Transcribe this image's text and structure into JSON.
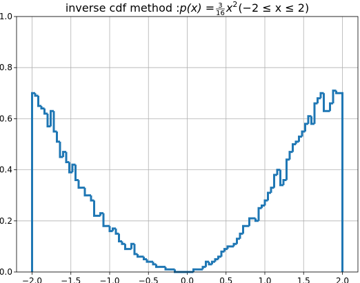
{
  "chart_data": {
    "type": "histogram",
    "title": {
      "text": "inverse cdf method : ",
      "lhs": "p(x) = ",
      "numerator": "3",
      "denominator": "16",
      "variable": "x",
      "exponent": "2",
      "condition": "(−2 ≤ x ≤ 2)"
    },
    "bins": [
      -2,
      -1.96,
      -1.92,
      -1.88,
      -1.84,
      -1.8,
      -1.76,
      -1.72,
      -1.68,
      -1.64,
      -1.6,
      -1.56,
      -1.52,
      -1.48,
      -1.44,
      -1.4,
      -1.36,
      -1.32,
      -1.28,
      -1.24,
      -1.2,
      -1.16,
      -1.12,
      -1.08,
      -1.04,
      -1,
      -0.96,
      -0.92,
      -0.88,
      -0.84,
      -0.8,
      -0.76,
      -0.72,
      -0.68,
      -0.64,
      -0.6,
      -0.56,
      -0.52,
      -0.48,
      -0.44,
      -0.4,
      -0.36,
      -0.32,
      -0.28,
      -0.24,
      -0.2,
      -0.16,
      -0.12,
      -0.08,
      -0.04,
      0,
      0.04,
      0.08,
      0.12,
      0.16,
      0.2,
      0.24,
      0.28,
      0.32,
      0.36,
      0.4,
      0.44,
      0.48,
      0.52,
      0.56,
      0.6,
      0.64,
      0.68,
      0.72,
      0.76,
      0.8,
      0.84,
      0.88,
      0.92,
      0.96,
      1,
      1.04,
      1.08,
      1.12,
      1.16,
      1.2,
      1.24,
      1.28,
      1.32,
      1.36,
      1.4,
      1.44,
      1.48,
      1.52,
      1.56,
      1.6,
      1.64,
      1.68,
      1.72,
      1.76,
      1.8,
      1.84,
      1.88,
      1.92,
      1.96,
      2
    ],
    "values": [
      0.7,
      0.69,
      0.65,
      0.64,
      0.62,
      0.57,
      0.63,
      0.55,
      0.51,
      0.45,
      0.47,
      0.43,
      0.39,
      0.42,
      0.36,
      0.33,
      0.33,
      0.3,
      0.3,
      0.28,
      0.22,
      0.22,
      0.23,
      0.18,
      0.18,
      0.16,
      0.17,
      0.15,
      0.12,
      0.11,
      0.09,
      0.09,
      0.11,
      0.07,
      0.06,
      0.06,
      0.05,
      0.04,
      0.04,
      0.03,
      0.02,
      0.02,
      0.02,
      0.01,
      0.01,
      0.01,
      0.0,
      0.0,
      0.0,
      0.0,
      0.0,
      0.0,
      0.01,
      0.01,
      0.01,
      0.02,
      0.04,
      0.03,
      0.04,
      0.05,
      0.06,
      0.08,
      0.09,
      0.1,
      0.1,
      0.11,
      0.13,
      0.15,
      0.18,
      0.18,
      0.21,
      0.21,
      0.2,
      0.25,
      0.26,
      0.28,
      0.31,
      0.33,
      0.38,
      0.4,
      0.34,
      0.36,
      0.44,
      0.47,
      0.5,
      0.51,
      0.53,
      0.55,
      0.58,
      0.61,
      0.58,
      0.66,
      0.68,
      0.7,
      0.63,
      0.63,
      0.66,
      0.71,
      0.7,
      0.7
    ],
    "color": "#1f77b4",
    "xlim": [
      -2.2,
      2.2
    ],
    "ylim": [
      0,
      1
    ],
    "xticks": [
      {
        "value": -2,
        "label": "−2.0"
      },
      {
        "value": -1.5,
        "label": "−1.5"
      },
      {
        "value": -1,
        "label": "−1.0"
      },
      {
        "value": -0.5,
        "label": "−0.5"
      },
      {
        "value": 0,
        "label": "0.0"
      },
      {
        "value": 0.5,
        "label": "0.5"
      },
      {
        "value": 1,
        "label": "1.0"
      },
      {
        "value": 1.5,
        "label": "1.5"
      },
      {
        "value": 2,
        "label": "2.0"
      }
    ],
    "yticks": [
      {
        "value": 0,
        "label": "0.0"
      },
      {
        "value": 0.2,
        "label": "0.2"
      },
      {
        "value": 0.4,
        "label": "0.4"
      },
      {
        "value": 0.6,
        "label": "0.6"
      },
      {
        "value": 0.8,
        "label": "0.8"
      },
      {
        "value": 1,
        "label": "1.0"
      }
    ],
    "grid": true
  }
}
